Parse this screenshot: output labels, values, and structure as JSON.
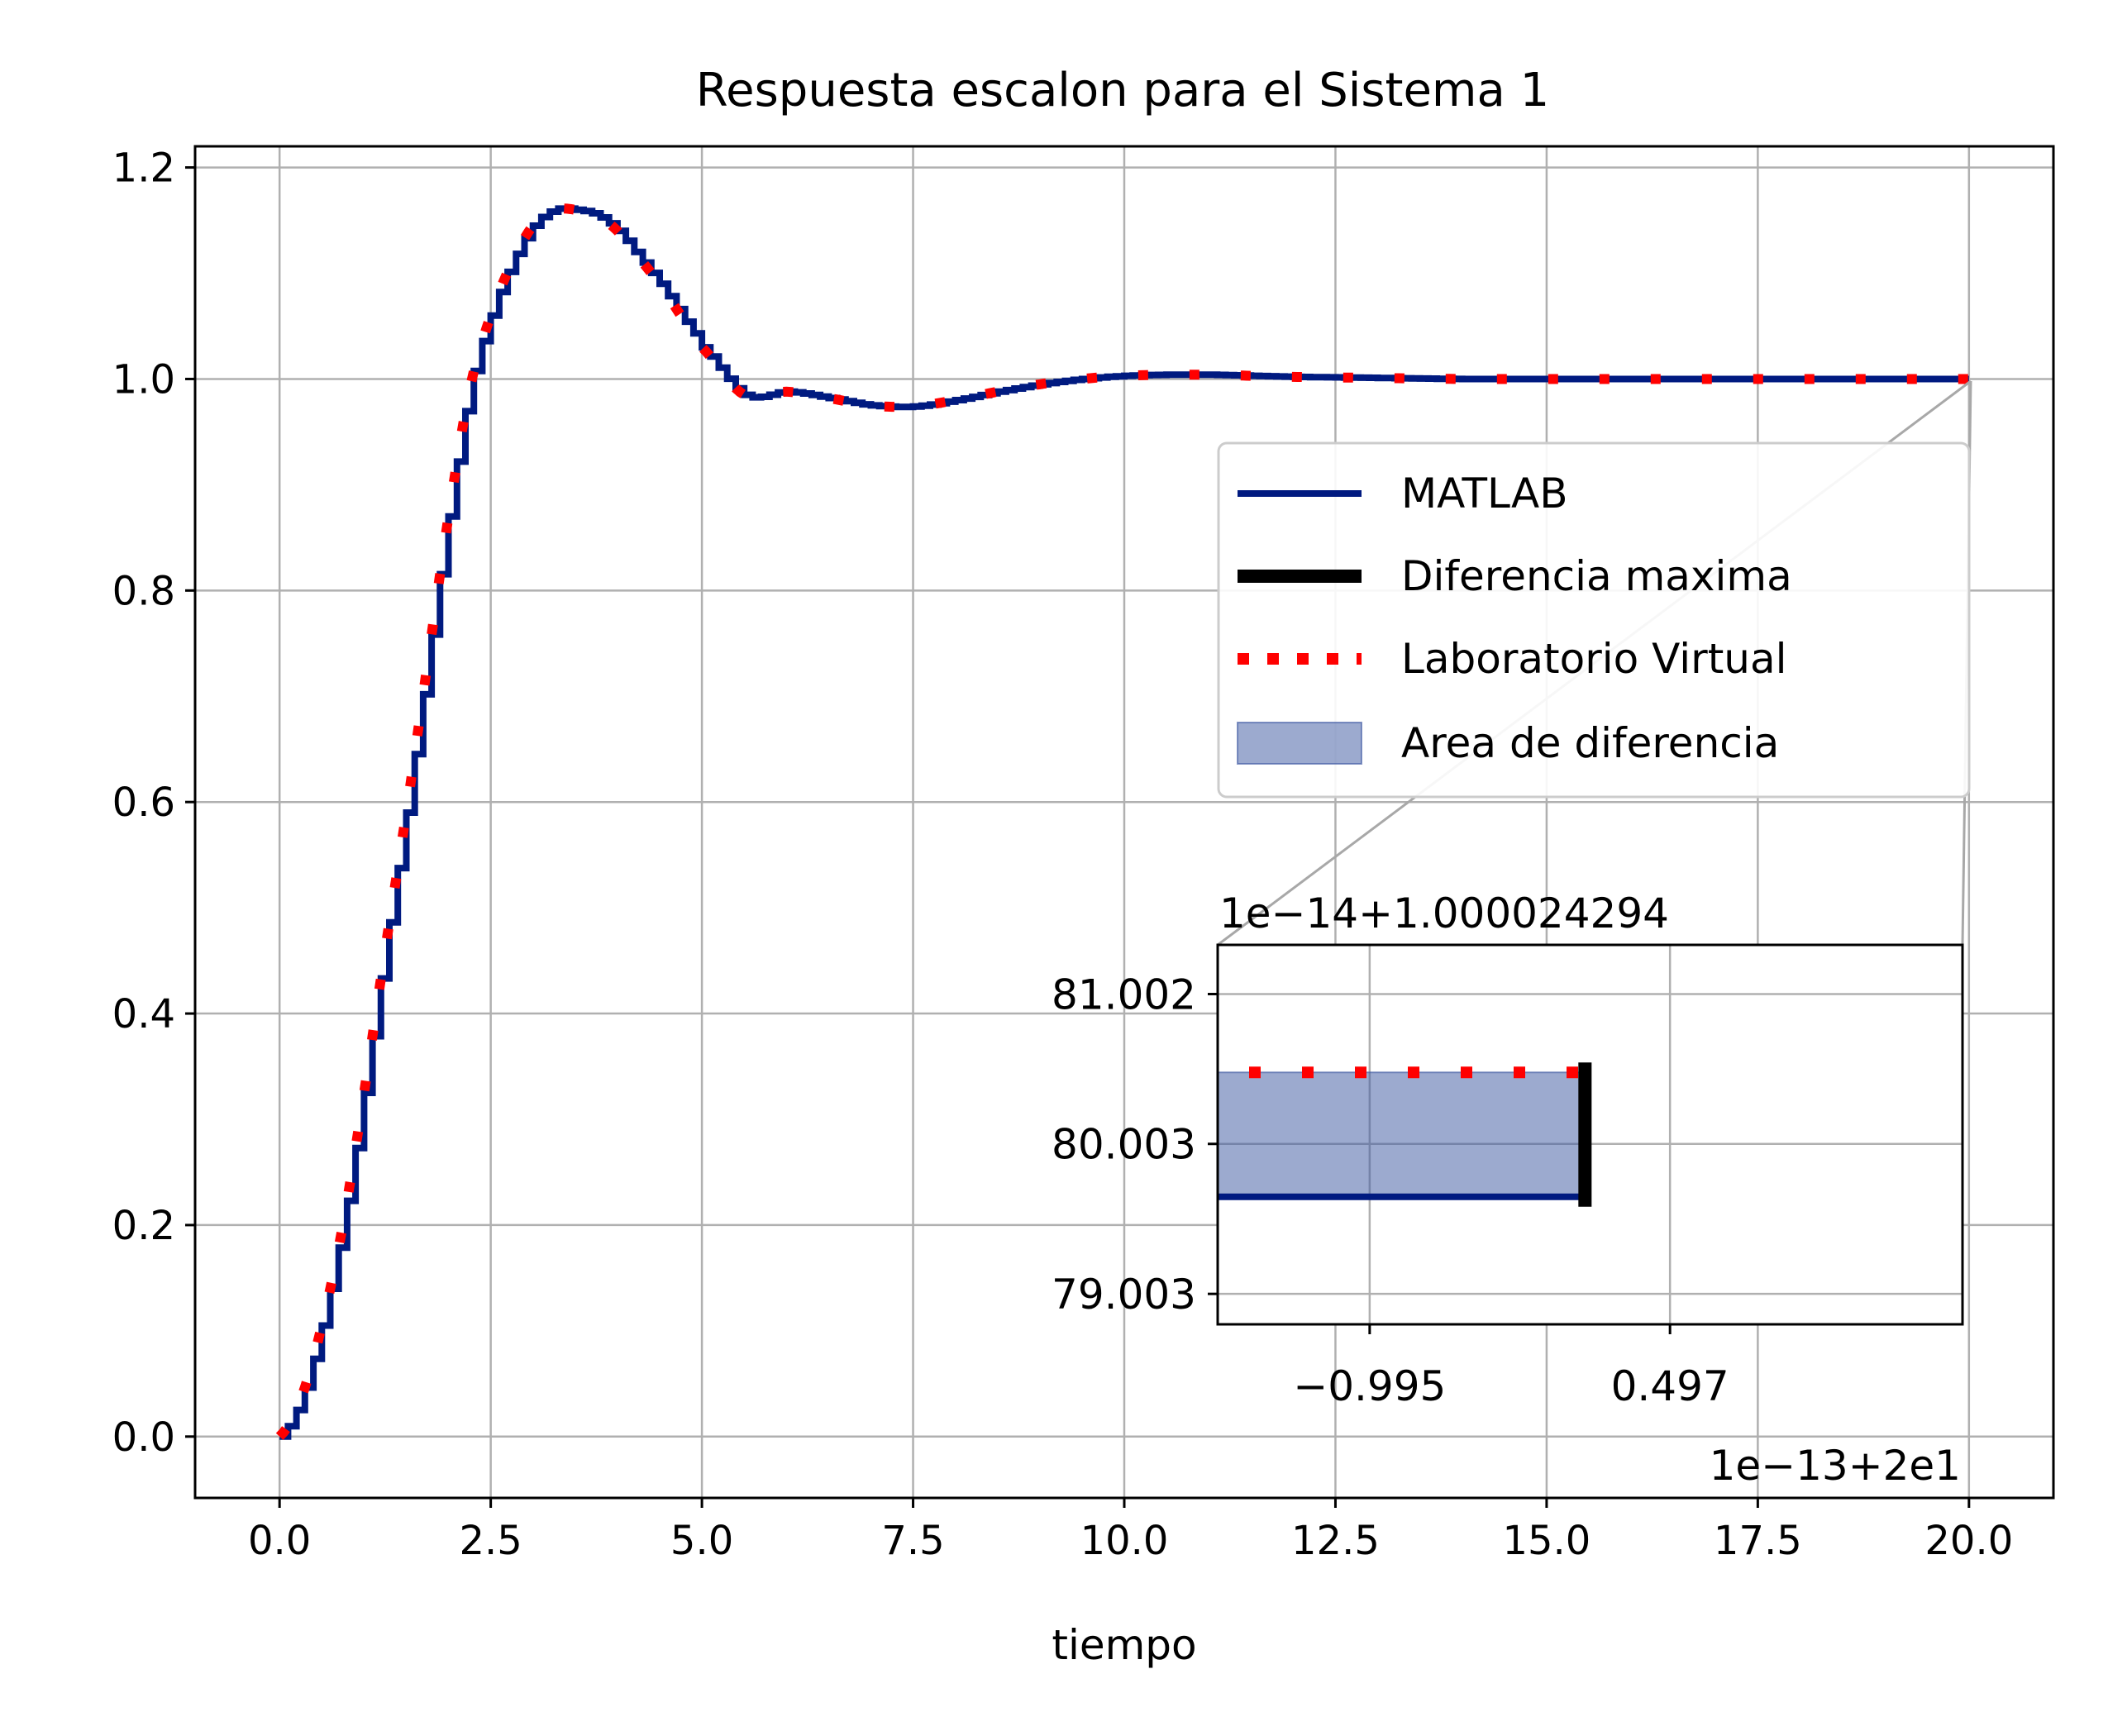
{
  "chart_data": {
    "type": "line",
    "title": "Respuesta escalon para el Sistema 1",
    "xlabel": "tiempo",
    "ylabel": "",
    "xlim": [
      -1.0,
      21.0
    ],
    "ylim": [
      -0.058,
      1.22
    ],
    "xticks": [
      "0.0",
      "2.5",
      "5.0",
      "7.5",
      "10.0",
      "12.5",
      "15.0",
      "17.5",
      "20.0"
    ],
    "yticks": [
      "0.0",
      "0.2",
      "0.4",
      "0.6",
      "0.8",
      "1.0",
      "1.2"
    ],
    "grid": true,
    "legend_position": "right",
    "colors": {
      "matlab": "#001a80",
      "diferencia": "#000000",
      "laboratorio": "#ff0000",
      "area": "#3a55a0"
    },
    "series": [
      {
        "name": "MATLAB",
        "style": "solid-staircase",
        "x": [
          0.0,
          0.25,
          0.5,
          0.75,
          1.0,
          1.25,
          1.5,
          1.75,
          2.0,
          2.25,
          2.5,
          2.75,
          3.0,
          3.25,
          3.5,
          3.75,
          4.0,
          4.25,
          4.5,
          4.75,
          5.0,
          5.5,
          6.0,
          6.5,
          7.0,
          7.5,
          8.0,
          8.5,
          9.0,
          9.5,
          10.0,
          10.5,
          11.0,
          11.5,
          12.0,
          13.0,
          14.0,
          15.0,
          16.0,
          17.0,
          18.0,
          19.0,
          20.0
        ],
        "y": [
          0.0,
          0.035,
          0.105,
          0.2,
          0.325,
          0.46,
          0.59,
          0.73,
          0.87,
          0.99,
          1.06,
          1.11,
          1.145,
          1.16,
          1.16,
          1.155,
          1.14,
          1.115,
          1.09,
          1.06,
          1.03,
          0.985,
          0.988,
          0.982,
          0.975,
          0.974,
          0.98,
          0.988,
          0.995,
          1.0,
          1.003,
          1.004,
          1.004,
          1.003,
          1.002,
          1.001,
          1.0,
          1.0,
          1.0,
          1.0,
          1.0,
          1.0,
          1.0
        ]
      },
      {
        "name": "Laboratorio Virtual",
        "style": "dotted",
        "x": [
          0.0,
          0.25,
          0.5,
          0.75,
          1.0,
          1.25,
          1.5,
          1.75,
          2.0,
          2.25,
          2.5,
          2.75,
          3.0,
          3.25,
          3.5,
          3.75,
          4.0,
          4.25,
          4.5,
          4.75,
          5.0,
          5.5,
          6.0,
          6.5,
          7.0,
          7.5,
          8.0,
          8.5,
          9.0,
          9.5,
          10.0,
          10.5,
          11.0,
          11.5,
          12.0,
          13.0,
          14.0,
          15.0,
          16.0,
          17.0,
          18.0,
          19.0,
          20.0
        ],
        "y": [
          0.0,
          0.035,
          0.105,
          0.2,
          0.325,
          0.46,
          0.59,
          0.73,
          0.87,
          0.99,
          1.06,
          1.11,
          1.145,
          1.16,
          1.16,
          1.155,
          1.14,
          1.115,
          1.09,
          1.06,
          1.03,
          0.985,
          0.988,
          0.982,
          0.975,
          0.974,
          0.98,
          0.988,
          0.995,
          1.0,
          1.003,
          1.004,
          1.004,
          1.003,
          1.002,
          1.001,
          1.0,
          1.0,
          1.0,
          1.0,
          1.0,
          1.0,
          1.0
        ]
      },
      {
        "name": "Diferencia maxima",
        "style": "thick-vertical"
      },
      {
        "name": "Area de diferencia",
        "style": "fill"
      }
    ],
    "inset": {
      "title_offset": "1e−14+1.000024294",
      "x_offset": "1e−13+2e1",
      "xticks": [
        "−0.995",
        "0.497"
      ],
      "yticks": [
        "81.002",
        "80.003",
        "79.003"
      ],
      "xlim": [
        -1.75,
        1.95
      ],
      "ylim": [
        78.8,
        81.33
      ],
      "matlab_y": 79.65,
      "lab_y": 80.48,
      "diff_x": 0.05,
      "line_x_start": -1.75
    }
  }
}
